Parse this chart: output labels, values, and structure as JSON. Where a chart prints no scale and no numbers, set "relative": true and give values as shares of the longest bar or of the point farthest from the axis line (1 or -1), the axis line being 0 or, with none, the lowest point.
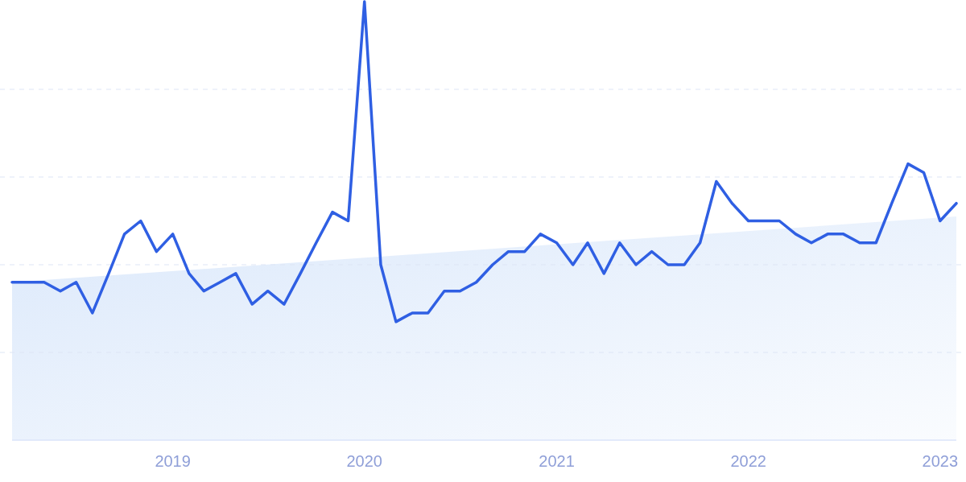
{
  "chart_data": {
    "type": "line",
    "relative": true,
    "grid": true,
    "x": [
      "2018-03",
      "2018-04",
      "2018-05",
      "2018-06",
      "2018-07",
      "2018-08",
      "2018-09",
      "2018-10",
      "2018-11",
      "2018-12",
      "2019-01",
      "2019-02",
      "2019-03",
      "2019-04",
      "2019-05",
      "2019-06",
      "2019-07",
      "2019-08",
      "2019-09",
      "2019-10",
      "2019-11",
      "2019-12",
      "2020-01",
      "2020-02",
      "2020-03",
      "2020-04",
      "2020-05",
      "2020-06",
      "2020-07",
      "2020-08",
      "2020-09",
      "2020-10",
      "2020-11",
      "2020-12",
      "2021-01",
      "2021-02",
      "2021-03",
      "2021-04",
      "2021-05",
      "2021-06",
      "2021-07",
      "2021-08",
      "2021-09",
      "2021-10",
      "2021-11",
      "2021-12",
      "2022-01",
      "2022-02",
      "2022-03",
      "2022-04",
      "2022-05",
      "2022-06",
      "2022-07",
      "2022-08",
      "2022-09",
      "2022-10",
      "2022-11",
      "2022-12",
      "2023-01",
      "2023-02"
    ],
    "xlim": [
      "2018-03",
      "2023-02"
    ],
    "xticks": [
      "2019",
      "2020",
      "2021",
      "2022",
      "2023"
    ],
    "series": [
      {
        "type": "area",
        "color": "#dce9fb",
        "x": [
          "2018-03",
          "2023-02"
        ],
        "values": [
          0.36,
          0.51
        ]
      },
      {
        "color": "#2f5fe3",
        "values": [
          0.36,
          0.36,
          0.36,
          0.34,
          0.36,
          0.29,
          0.38,
          0.47,
          0.5,
          0.43,
          0.47,
          0.38,
          0.34,
          0.36,
          0.38,
          0.31,
          0.34,
          0.31,
          0.38,
          0.45,
          0.52,
          0.5,
          1,
          0.4,
          0.27,
          0.29,
          0.29,
          0.34,
          0.34,
          0.36,
          0.4,
          0.43,
          0.43,
          0.47,
          0.45,
          0.4,
          0.45,
          0.38,
          0.45,
          0.4,
          0.43,
          0.4,
          0.4,
          0.45,
          0.59,
          0.54,
          0.5,
          0.5,
          0.5,
          0.47,
          0.45,
          0.47,
          0.47,
          0.45,
          0.45,
          0.54,
          0.63,
          0.61,
          0.5,
          0.54
        ]
      }
    ]
  }
}
